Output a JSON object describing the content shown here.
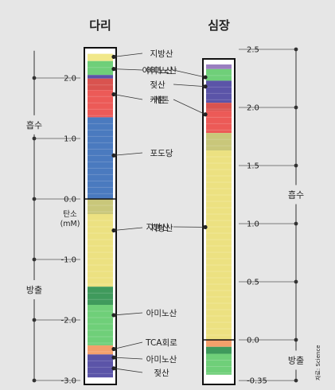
{
  "colors": {
    "background": "#e6e6e6",
    "lipid": "#f1e88a",
    "glucose": "#4a7abf",
    "ketone": "#ec5a57",
    "amino_acid": "#6fcf79",
    "lactate": "#5b54a8",
    "tca": "#f4a06b"
  },
  "chart_data": [
    {
      "type": "stacked-bar",
      "title": "다리",
      "unit_label": "탄소\n(mM)",
      "ylim": [
        -3.0,
        2.45
      ],
      "ticks": [
        2.0,
        1.0,
        0.0,
        -1.0,
        -2.0,
        -3.0
      ],
      "tick_labels": [
        "2.0",
        "1.0",
        "0.0",
        "-1.0",
        "-2.0",
        "-3.0"
      ],
      "regions": [
        {
          "label": "흡수",
          "from": 0.0,
          "to": 2.45
        },
        {
          "label": "방출",
          "from": 0.0,
          "to": -3.0
        }
      ],
      "segments": [
        {
          "name": "지방산",
          "from": 2.4,
          "to": 2.28,
          "color": "#f1e88a"
        },
        {
          "name": "아미노산",
          "from": 2.28,
          "to": 2.05,
          "color": "#6fcf79"
        },
        {
          "name": "아미노산",
          "from": 2.05,
          "to": 1.99,
          "color": "#5b54a8"
        },
        {
          "name": "케톤",
          "from": 1.99,
          "to": 1.8,
          "color": "#d9534f"
        },
        {
          "name": "케톤",
          "from": 1.8,
          "to": 1.35,
          "color": "#ec5a57"
        },
        {
          "name": "포도당",
          "from": 1.35,
          "to": 0.0,
          "color": "#4a7abf"
        },
        {
          "name": "지방산",
          "from": 0.0,
          "to": -0.25,
          "color": "#c9c77a"
        },
        {
          "name": "지방산",
          "from": -0.25,
          "to": -1.45,
          "color": "#ece181"
        },
        {
          "name": "아미노산",
          "from": -1.45,
          "to": -1.75,
          "color": "#3f9a5c"
        },
        {
          "name": "아미노산",
          "from": -1.75,
          "to": -2.42,
          "color": "#6fcf79"
        },
        {
          "name": "TCA회로",
          "from": -2.42,
          "to": -2.57,
          "color": "#f4a06b"
        },
        {
          "name": "젖산",
          "from": -2.57,
          "to": -2.95,
          "color": "#5b54a8"
        }
      ],
      "annotations": [
        {
          "text": "지방산",
          "value": 2.35
        },
        {
          "text": "아미노산",
          "value": 2.15
        },
        {
          "text": "케톤",
          "value": 1.73
        },
        {
          "text": "포도당",
          "value": 0.72
        },
        {
          "text": "지방산",
          "value": -0.52
        },
        {
          "text": "아미노산",
          "value": -1.92
        },
        {
          "text": "TCA회로",
          "value": -2.48
        },
        {
          "text": "아미노산",
          "value": -2.62
        },
        {
          "text": "젖산",
          "value": -2.8
        }
      ]
    },
    {
      "type": "stacked-bar",
      "title": "심장",
      "ylim": [
        -0.35,
        2.5
      ],
      "ticks": [
        2.5,
        2.0,
        1.5,
        1.0,
        0.5,
        0.0,
        -0.35
      ],
      "tick_labels": [
        "2.5",
        "2.0",
        "1.5",
        "1.0",
        "0.5",
        "0.0",
        "-0.35"
      ],
      "regions": [
        {
          "label": "흡수",
          "from": 0.0,
          "to": 2.5
        },
        {
          "label": "방출",
          "from": 0.0,
          "to": -0.35
        }
      ],
      "segments": [
        {
          "name": "아미노산",
          "from": 2.37,
          "to": 2.33,
          "color": "#9a7fc0"
        },
        {
          "name": "아미노산",
          "from": 2.33,
          "to": 2.23,
          "color": "#6fcf79"
        },
        {
          "name": "젖산",
          "from": 2.23,
          "to": 2.04,
          "color": "#5b54a8"
        },
        {
          "name": "케톤",
          "from": 2.04,
          "to": 1.97,
          "color": "#d9534f"
        },
        {
          "name": "케톤",
          "from": 1.97,
          "to": 1.78,
          "color": "#ec5a57"
        },
        {
          "name": "지방산",
          "from": 1.78,
          "to": 1.63,
          "color": "#c9c77a"
        },
        {
          "name": "지방산",
          "from": 1.63,
          "to": 0.0,
          "color": "#ece181"
        },
        {
          "name": "TCA회로",
          "from": 0.0,
          "to": -0.06,
          "color": "#f4a06b"
        },
        {
          "name": "아미노산",
          "from": -0.06,
          "to": -0.12,
          "color": "#3f9a5c"
        },
        {
          "name": "아미노산",
          "from": -0.12,
          "to": -0.3,
          "color": "#6fcf79"
        }
      ],
      "annotations": [
        {
          "text": "아미노산",
          "value": 2.26
        },
        {
          "text": "젖산",
          "value": 2.18
        },
        {
          "text": "케톤",
          "value": 1.94
        },
        {
          "text": "지방산",
          "value": 0.97
        }
      ]
    }
  ],
  "credit": "자료: Science"
}
